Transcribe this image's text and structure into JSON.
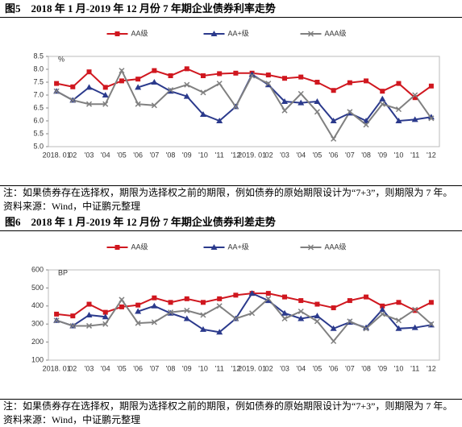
{
  "chart_data": [
    {
      "type": "line",
      "title": "图5　2018 年 1 月-2019 年 12 月份 7 年期企业债券利率走势",
      "unit": "%",
      "categories": [
        "2018. 01",
        "02",
        "'03",
        "'04",
        "'05",
        "'06",
        "'07",
        "'08",
        "'09",
        "'10",
        "'11",
        "'12",
        "2019. 01",
        "'02",
        "'03",
        "'04",
        "'05",
        "'06",
        "'07",
        "'08",
        "'09",
        "'10",
        "'11",
        "'12"
      ],
      "series": [
        {
          "name": "AA级",
          "color": "#d0171f",
          "marker": "square",
          "values": [
            7.45,
            7.32,
            7.9,
            7.3,
            7.55,
            7.62,
            7.95,
            7.75,
            8.02,
            7.75,
            7.83,
            7.85,
            7.85,
            7.78,
            7.65,
            7.7,
            7.5,
            7.18,
            7.48,
            7.55,
            7.15,
            7.45,
            6.9,
            7.35
          ]
        },
        {
          "name": "AA+级",
          "color": "#2b3a8c",
          "marker": "triangle",
          "values": [
            7.15,
            6.8,
            7.3,
            7.0,
            null,
            7.3,
            7.5,
            7.15,
            6.95,
            6.25,
            6.0,
            6.55,
            7.8,
            7.4,
            6.75,
            6.7,
            6.75,
            6.0,
            6.3,
            6.0,
            6.85,
            6.0,
            6.05,
            6.15
          ]
        },
        {
          "name": "AAA级",
          "color": "#808080",
          "marker": "x",
          "values": [
            7.15,
            6.8,
            6.65,
            6.65,
            7.95,
            6.65,
            6.6,
            7.2,
            7.4,
            7.1,
            7.45,
            6.55,
            7.75,
            7.45,
            6.4,
            7.05,
            6.35,
            5.3,
            6.35,
            5.85,
            6.65,
            6.45,
            7.0,
            6.1
          ]
        }
      ],
      "ylim": [
        5,
        8.5
      ],
      "yticks": [
        {
          "value": 5,
          "label": "5.0"
        },
        5.5,
        {
          "value": 6,
          "label": "6.0"
        },
        6.5,
        {
          "value": 7,
          "label": "7.0"
        },
        7.5,
        {
          "value": 8,
          "label": "8.0"
        },
        8.5
      ],
      "note": "注：如果债券存在选择权，期限为选择权之前的期限，例如债券的原始期限设计为“7+3”，则期限为 7 年。",
      "source": "资料来源：Wind，中证鹏元整理"
    },
    {
      "type": "line",
      "title": "图6　2018 年 1 月-2019 年 12 月份 7 年期企业债券利差走势",
      "unit": "BP",
      "categories": [
        "2018. 01",
        "02",
        "'03",
        "'04",
        "'05",
        "'06",
        "'07",
        "'08",
        "'09",
        "'10",
        "'11",
        "'12",
        "2019. 01",
        "'02",
        "'03",
        "'04",
        "'05",
        "'06",
        "'07",
        "'08",
        "'09",
        "'10",
        "'11",
        "'12"
      ],
      "series": [
        {
          "name": "AA级",
          "color": "#d0171f",
          "marker": "square",
          "values": [
            355,
            345,
            410,
            365,
            395,
            405,
            445,
            420,
            440,
            420,
            440,
            460,
            470,
            470,
            450,
            430,
            410,
            390,
            430,
            450,
            400,
            420,
            375,
            420
          ]
        },
        {
          "name": "AA+级",
          "color": "#2b3a8c",
          "marker": "triangle",
          "values": [
            320,
            290,
            350,
            340,
            null,
            370,
            400,
            360,
            330,
            270,
            255,
            330,
            470,
            430,
            360,
            330,
            345,
            275,
            310,
            280,
            380,
            275,
            280,
            295
          ]
        },
        {
          "name": "AAA级",
          "color": "#808080",
          "marker": "x",
          "values": [
            320,
            290,
            290,
            300,
            435,
            305,
            310,
            365,
            375,
            350,
            400,
            330,
            360,
            440,
            330,
            370,
            315,
            205,
            315,
            275,
            355,
            320,
            380,
            300
          ]
        }
      ],
      "ylim": [
        100,
        600
      ],
      "yticks": [
        100,
        200,
        300,
        400,
        500,
        600
      ],
      "note": "注：如果债券存在选择权，期限为选择权之前的期限，例如债券的原始期限设计为“7+3”，则期限为 7 年。",
      "source": "资料来源：Wind，中证鹏元整理"
    }
  ]
}
